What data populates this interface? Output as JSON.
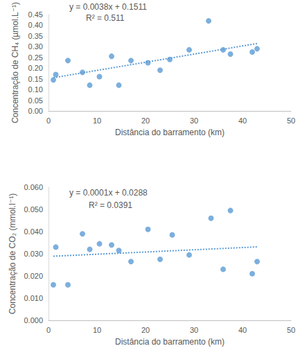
{
  "chart_data": [
    {
      "type": "scatter",
      "x_label": "Distância do barramento (km)",
      "y_label": "Concentração de CH₄ (µmol.L⁻¹)",
      "x": [
        1,
        1.5,
        4,
        7,
        8.5,
        10.5,
        13,
        14.5,
        17,
        20.5,
        23,
        25,
        29,
        33,
        36,
        37.5,
        42,
        43
      ],
      "values": [
        0.145,
        0.17,
        0.235,
        0.18,
        0.12,
        0.16,
        0.255,
        0.12,
        0.235,
        0.225,
        0.19,
        0.24,
        0.285,
        0.42,
        0.285,
        0.265,
        0.275,
        0.29
      ],
      "color": "#5b9bd5",
      "marker": "circle",
      "xlim": [
        0,
        50
      ],
      "xticks": [
        0,
        10,
        20,
        30,
        40,
        50
      ],
      "ylim": [
        0,
        0.45
      ],
      "yticks": [
        {
          "value": 0,
          "label": "0.00"
        },
        {
          "value": 0.05,
          "label": "0.05"
        },
        {
          "value": 0.1,
          "label": "0.10"
        },
        {
          "value": 0.15,
          "label": "0.15"
        },
        {
          "value": 0.2,
          "label": "0.20"
        },
        {
          "value": 0.25,
          "label": "0.25"
        },
        {
          "value": 0.3,
          "label": "0.30"
        },
        {
          "value": 0.35,
          "label": "0.35"
        },
        {
          "value": 0.4,
          "label": "0.40"
        },
        {
          "value": 0.45,
          "label": "0.45"
        }
      ],
      "trendline": {
        "slope": 0.0038,
        "intercept": 0.1511,
        "line_style": "dotted"
      },
      "annotations": [
        "y = 0.0038x + 0.1511",
        "R² = 0.511"
      ]
    },
    {
      "type": "scatter",
      "x_label": "Distância do barramento (km)",
      "y_label": "Concentração de CO₂ (mmol.l⁻¹)",
      "x": [
        1,
        1.5,
        4,
        7,
        8.5,
        10.5,
        13,
        14.5,
        17,
        20.5,
        23,
        25.5,
        29,
        33.5,
        36,
        37.5,
        42,
        43
      ],
      "values": [
        0.016,
        0.033,
        0.016,
        0.039,
        0.032,
        0.0345,
        0.034,
        0.0315,
        0.0265,
        0.041,
        0.0275,
        0.0385,
        0.0295,
        0.046,
        0.023,
        0.0495,
        0.021,
        0.0265
      ],
      "color": "#5b9bd5",
      "marker": "circle",
      "xlim": [
        0,
        50
      ],
      "xticks": [
        0,
        10,
        20,
        30,
        40,
        50
      ],
      "ylim": [
        0,
        0.06
      ],
      "yticks": [
        {
          "value": 0,
          "label": "0.000"
        },
        {
          "value": 0.01,
          "label": "0.010"
        },
        {
          "value": 0.02,
          "label": "0.020"
        },
        {
          "value": 0.03,
          "label": "0.030"
        },
        {
          "value": 0.04,
          "label": "0.040"
        },
        {
          "value": 0.05,
          "label": "0.050"
        },
        {
          "value": 0.06,
          "label": "0.060"
        }
      ],
      "trendline": {
        "slope": 0.0001,
        "intercept": 0.0288,
        "line_style": "dotted"
      },
      "annotations": [
        "y = 0.0001x + 0.0288",
        "R² = 0.0391"
      ]
    }
  ]
}
